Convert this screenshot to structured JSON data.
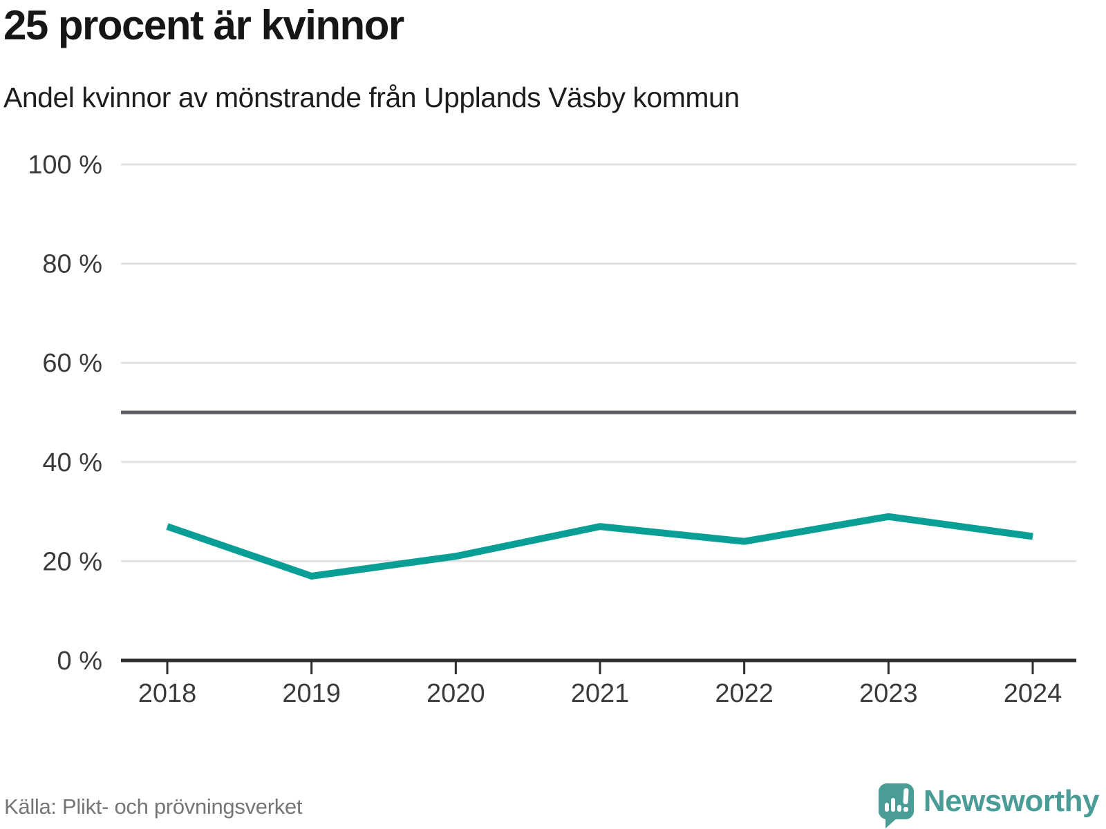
{
  "header": {
    "title": "25 procent är kvinnor",
    "subtitle": "Andel kvinnor av mönstrande från Upplands Väsby kommun"
  },
  "chart_data": {
    "type": "line",
    "title": "25 procent är kvinnor",
    "subtitle": "Andel kvinnor av mönstrande från Upplands Väsby kommun",
    "x": [
      2018,
      2019,
      2020,
      2021,
      2022,
      2023,
      2024
    ],
    "xtick_labels": [
      "2018",
      "2019",
      "2020",
      "2021",
      "2022",
      "2023",
      "2024"
    ],
    "series": [
      {
        "name": "Andel kvinnor av mönstrande",
        "values": [
          27,
          17,
          21,
          27,
          24,
          29,
          25
        ],
        "color": "#0a9f96"
      }
    ],
    "ylim": [
      0,
      100
    ],
    "yticks": [
      0,
      20,
      40,
      60,
      80,
      100
    ],
    "ytick_labels": [
      "0 %",
      "20 %",
      "40 %",
      "60 %",
      "80 %",
      "100 %"
    ],
    "reference_line": {
      "value": 50,
      "color": "#5d5d66"
    },
    "grid": "horizontal",
    "legend": "none",
    "colors": {
      "grid": "#e2e2e2",
      "axis": "#2e2e2e",
      "tick_label": "#3a3a3a"
    }
  },
  "footer": {
    "source": "Källa: Plikt- och prövningsverket",
    "brand": "Newsworthy",
    "brand_color": "#4a9c96"
  }
}
